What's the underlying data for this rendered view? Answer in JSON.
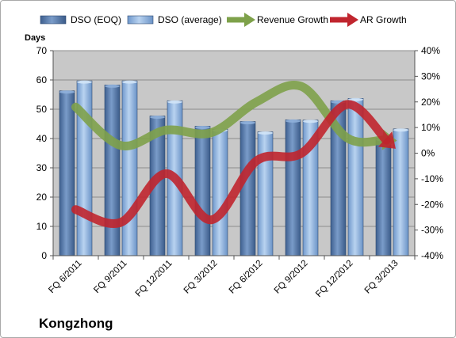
{
  "chart_data": {
    "type": "bar",
    "categories": [
      "FQ 6/2011",
      "FQ 9/2011",
      "FQ 12/2011",
      "FQ 3/2012",
      "FQ 6/2012",
      "FQ 9/2012",
      "FQ 12/2012",
      "FQ 3/2013"
    ],
    "series": [
      {
        "name": "DSO (EOQ)",
        "type": "bar",
        "axis": "left",
        "values": [
          56.3,
          58.3,
          47.7,
          44.2,
          45.8,
          46.4,
          52.9,
          40.0
        ]
      },
      {
        "name": "DSO (average)",
        "type": "bar",
        "axis": "left",
        "values": [
          59.7,
          59.7,
          52.9,
          43.2,
          42.3,
          46.3,
          53.7,
          43.3
        ]
      },
      {
        "name": "Revenue Growth",
        "type": "line",
        "axis": "right",
        "unit": "%",
        "values": [
          18,
          3,
          9,
          8,
          20,
          26,
          6,
          5
        ]
      },
      {
        "name": "AR Growth",
        "type": "line",
        "axis": "right",
        "unit": "%",
        "values": [
          -22,
          -27,
          -8,
          -26,
          -3,
          0,
          19,
          3
        ]
      }
    ],
    "ylabel": "Days",
    "ylim": [
      0,
      70
    ],
    "yticks": [
      0,
      10,
      20,
      30,
      40,
      50,
      60,
      70
    ],
    "y2lim": [
      -40,
      40
    ],
    "y2ticks": [
      "-40%",
      "-30%",
      "-20%",
      "-10%",
      "0%",
      "10%",
      "20%",
      "30%",
      "40%"
    ],
    "legend": "top",
    "grid": true,
    "colors": {
      "dso_eoq": "#5a7fb3",
      "dso_avg": "#8fb4e3",
      "revenue_growth": "#7ea14a",
      "ar_growth": "#c0252e",
      "plot_bg": "#c8c8c8"
    },
    "company": "Kongzhong"
  }
}
